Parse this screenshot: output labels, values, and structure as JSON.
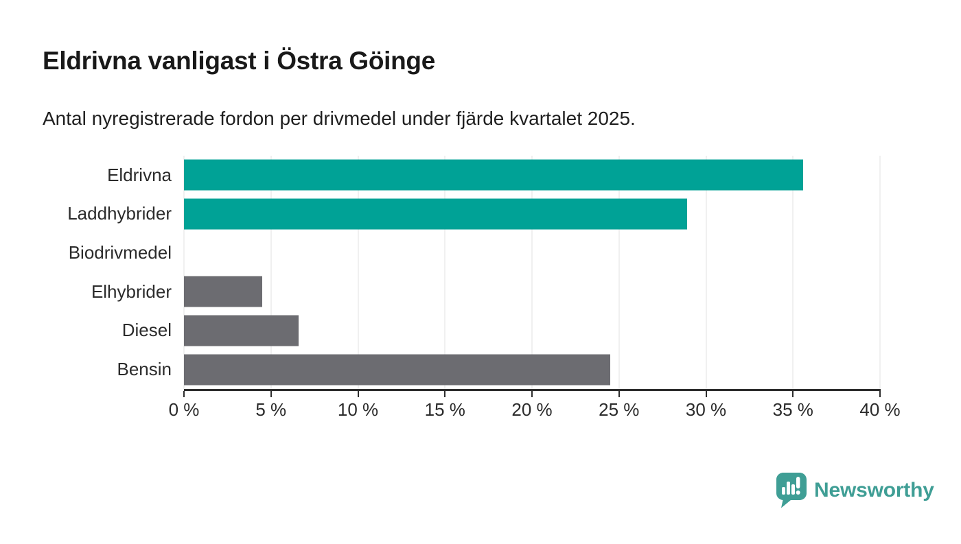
{
  "header": {
    "title": "Eldrivna vanligast i Östra Göinge",
    "subtitle": "Antal nyregistrerade fordon per drivmedel under fjärde kvartalet 2025."
  },
  "chart_data": {
    "type": "bar",
    "orientation": "horizontal",
    "title": "Eldrivna vanligast i Östra Göinge",
    "subtitle": "Antal nyregistrerade fordon per drivmedel under fjärde kvartalet 2025.",
    "categories": [
      "Eldrivna",
      "Laddhybrider",
      "Biodrivmedel",
      "Elhybrider",
      "Diesel",
      "Bensin"
    ],
    "values": [
      35.6,
      28.9,
      0,
      4.5,
      6.6,
      24.5
    ],
    "unit": "%",
    "bar_colors": [
      "#00a296",
      "#00a296",
      "#6c6c71",
      "#6c6c71",
      "#6c6c71",
      "#6c6c71"
    ],
    "xlabel": "",
    "ylabel": "",
    "xlim": [
      0,
      40
    ],
    "x_ticks": [
      {
        "value": 0,
        "label": "0 %"
      },
      {
        "value": 5,
        "label": "5 %"
      },
      {
        "value": 10,
        "label": "10 %"
      },
      {
        "value": 15,
        "label": "15 %"
      },
      {
        "value": 20,
        "label": "20 %"
      },
      {
        "value": 25,
        "label": "25 %"
      },
      {
        "value": 30,
        "label": "30 %"
      },
      {
        "value": 35,
        "label": "35 %"
      },
      {
        "value": 40,
        "label": "40 %"
      }
    ],
    "grid": "vertical",
    "legend": "none"
  },
  "theme": {
    "accent_teal": "#00a296",
    "neutral_gray": "#6c6c71",
    "grid_color": "#e2e2e2",
    "axis_color": "#2d2d2d",
    "background": "#ffffff"
  },
  "footer": {
    "brand": "Newsworthy",
    "brand_color": "#3f9e95",
    "logo_icon": "speech-bubble-bar-chart-icon"
  }
}
